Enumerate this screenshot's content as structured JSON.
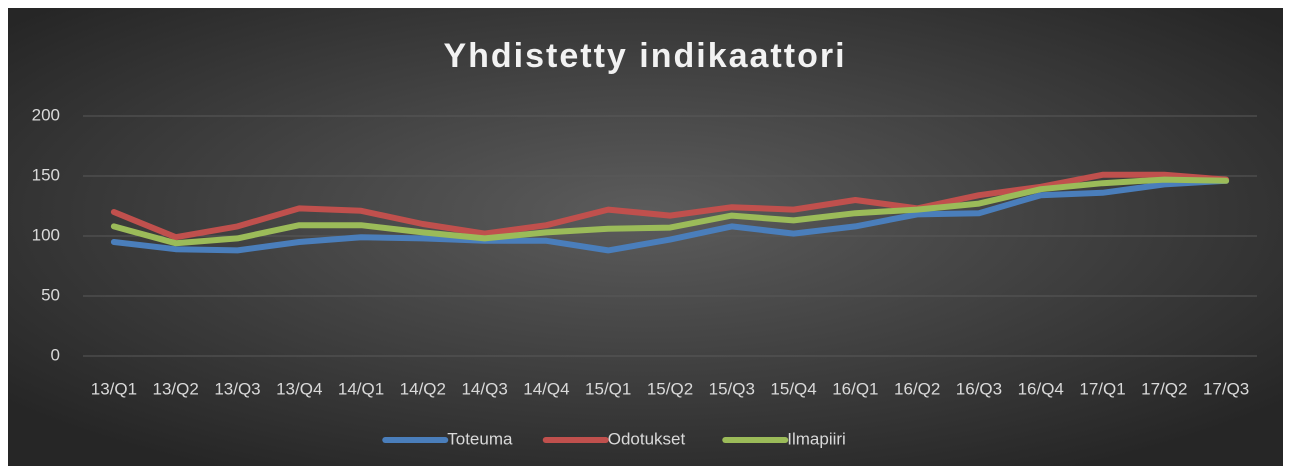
{
  "chart_data": {
    "type": "line",
    "title": "Yhdistetty indikaattori",
    "categories": [
      "13/Q1",
      "13/Q2",
      "13/Q3",
      "13/Q4",
      "14/Q1",
      "14/Q2",
      "14/Q3",
      "14/Q4",
      "15/Q1",
      "15/Q2",
      "15/Q3",
      "15/Q4",
      "16/Q1",
      "16/Q2",
      "16/Q3",
      "16/Q4",
      "17/Q1",
      "17/Q2",
      "17/Q3"
    ],
    "series": [
      {
        "name": "Toteuma",
        "color": "#4a7ebb",
        "values": [
          95,
          89,
          88,
          95,
          99,
          98,
          96,
          96,
          88,
          97,
          108,
          102,
          108,
          118,
          119,
          134,
          136,
          143,
          146
        ]
      },
      {
        "name": "Odotukset",
        "color": "#c0504d",
        "values": [
          120,
          99,
          108,
          123,
          121,
          110,
          102,
          109,
          122,
          117,
          124,
          122,
          130,
          123,
          134,
          141,
          151,
          151,
          147
        ]
      },
      {
        "name": "Ilmapiiri",
        "color": "#9bbb59",
        "values": [
          108,
          94,
          98,
          109,
          109,
          103,
          98,
          103,
          106,
          107,
          117,
          113,
          119,
          122,
          127,
          139,
          144,
          147,
          146
        ]
      }
    ],
    "ylim": [
      0,
      200
    ],
    "yticks": [
      0,
      50,
      100,
      150,
      200
    ],
    "grid": true,
    "legend": "bottom"
  }
}
